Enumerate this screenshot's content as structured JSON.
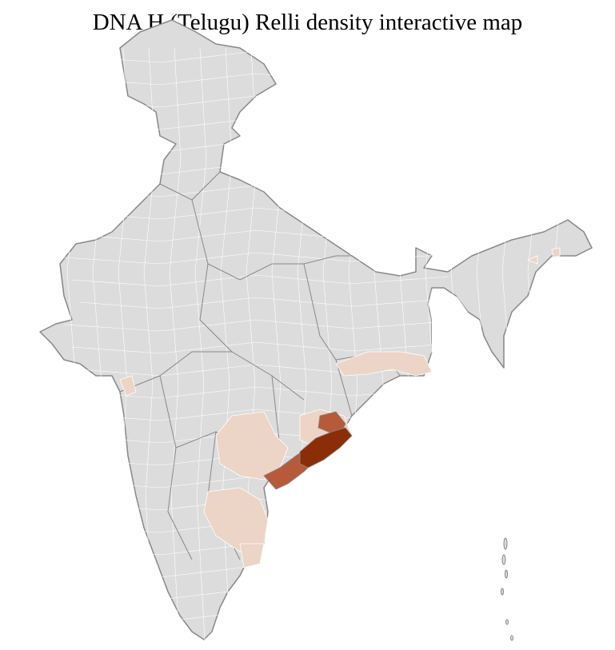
{
  "title": "DNA H (Telugu) Relli density interactive map",
  "colors": {
    "no_data": "#dcdcdc",
    "low": "#ecd4c6",
    "medium": "#b65a3a",
    "high": "#8b2e08",
    "state_border": "#888888",
    "district_border": "#ffffff"
  },
  "density_levels": [
    "no_data",
    "low",
    "medium",
    "high"
  ]
}
